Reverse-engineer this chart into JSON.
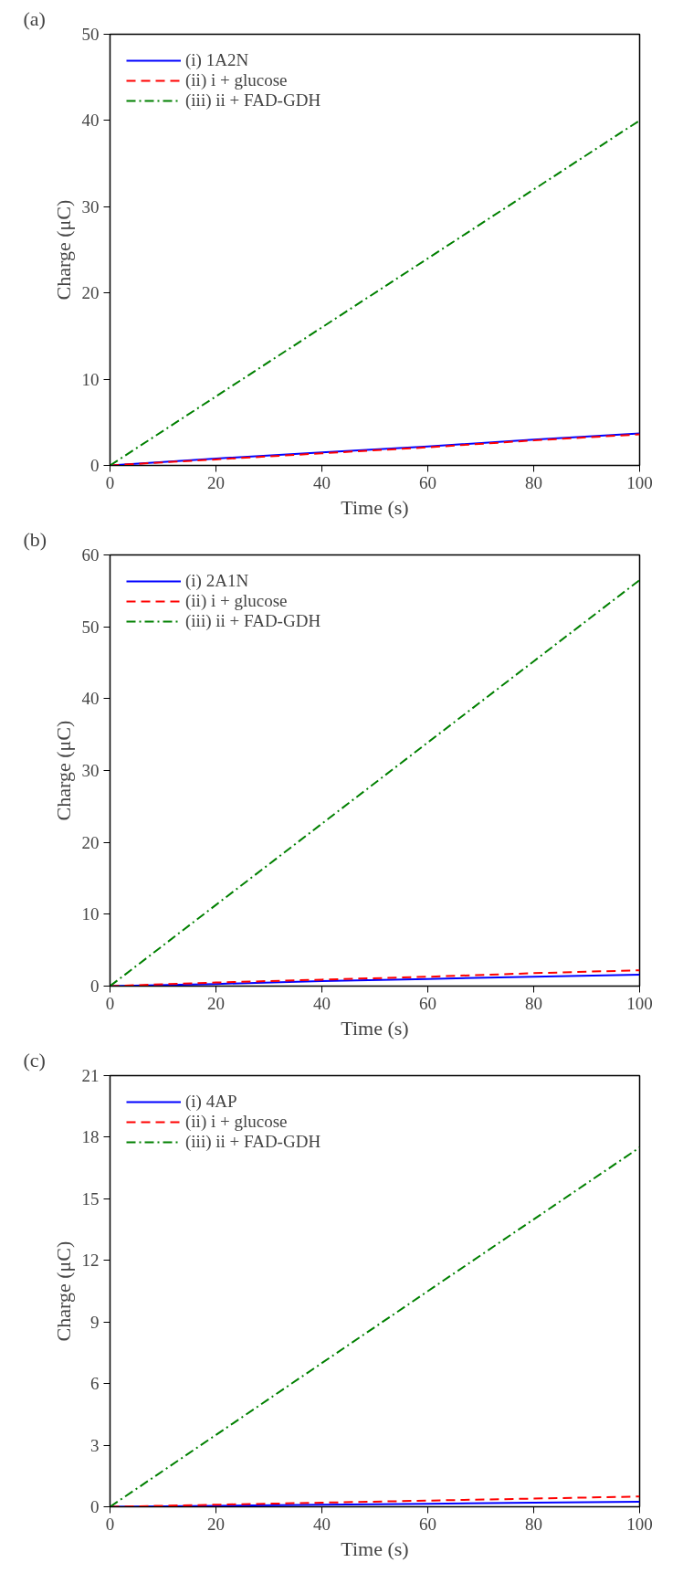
{
  "chart_data": [
    {
      "type": "line",
      "annotations": [
        "(a)"
      ],
      "xlabel": "Time (s)",
      "ylabel": "Charge (μC)",
      "x": [
        0,
        20,
        40,
        60,
        80,
        100
      ],
      "xlim": [
        0,
        100
      ],
      "xticks": [
        0,
        20,
        40,
        60,
        80,
        100
      ],
      "ylim": [
        0,
        50
      ],
      "yticks": [
        0,
        10,
        20,
        30,
        40,
        50
      ],
      "grid": false,
      "legend": "top left",
      "series": [
        {
          "name": "(i) 1A2N",
          "color": "#0000ff",
          "line_style": "solid",
          "values": [
            0,
            0.8,
            1.5,
            2.2,
            3.0,
            3.7
          ]
        },
        {
          "name": "(ii) i + glucose",
          "color": "#ff0000",
          "line_style": "dashed",
          "values": [
            0,
            0.7,
            1.4,
            2.1,
            2.9,
            3.6
          ]
        },
        {
          "name": "(iii) ii + FAD-GDH",
          "color": "#008000",
          "line_style": "dashdot",
          "values": [
            0,
            8,
            16,
            24,
            32,
            40
          ]
        }
      ]
    },
    {
      "type": "line",
      "annotations": [
        "(b)"
      ],
      "xlabel": "Time (s)",
      "ylabel": "Charge (μC)",
      "x": [
        0,
        20,
        40,
        60,
        80,
        100
      ],
      "xlim": [
        0,
        100
      ],
      "xticks": [
        0,
        20,
        40,
        60,
        80,
        100
      ],
      "ylim": [
        0,
        60
      ],
      "yticks": [
        0,
        10,
        20,
        30,
        40,
        50,
        60
      ],
      "grid": false,
      "legend": "top left",
      "series": [
        {
          "name": "(i) 2A1N",
          "color": "#0000ff",
          "line_style": "solid",
          "values": [
            0,
            0.3,
            0.7,
            1.0,
            1.3,
            1.6
          ]
        },
        {
          "name": "(ii) i + glucose",
          "color": "#ff0000",
          "line_style": "dashed",
          "values": [
            0,
            0.5,
            0.9,
            1.3,
            1.8,
            2.2
          ]
        },
        {
          "name": "(iii) ii + FAD-GDH",
          "color": "#008000",
          "line_style": "dashdot",
          "values": [
            0,
            11.3,
            22.6,
            33.9,
            45.2,
            56.5
          ]
        }
      ]
    },
    {
      "type": "line",
      "annotations": [
        "(c)"
      ],
      "xlabel": "Time (s)",
      "ylabel": "Charge (μC)",
      "x": [
        0,
        20,
        40,
        60,
        80,
        100
      ],
      "xlim": [
        0,
        100
      ],
      "xticks": [
        0,
        20,
        40,
        60,
        80,
        100
      ],
      "ylim": [
        0,
        21
      ],
      "yticks": [
        0,
        3,
        6,
        9,
        12,
        15,
        18,
        21
      ],
      "grid": false,
      "legend": "top left",
      "series": [
        {
          "name": "(i) 4AP",
          "color": "#0000ff",
          "line_style": "solid",
          "values": [
            0,
            0.05,
            0.1,
            0.15,
            0.2,
            0.25
          ]
        },
        {
          "name": "(ii) i + glucose",
          "color": "#ff0000",
          "line_style": "dashed",
          "values": [
            0,
            0.1,
            0.2,
            0.3,
            0.4,
            0.5
          ]
        },
        {
          "name": "(iii) ii + FAD-GDH",
          "color": "#008000",
          "line_style": "dashdot",
          "values": [
            0,
            3.5,
            7.0,
            10.5,
            14.0,
            17.5
          ]
        }
      ]
    }
  ]
}
